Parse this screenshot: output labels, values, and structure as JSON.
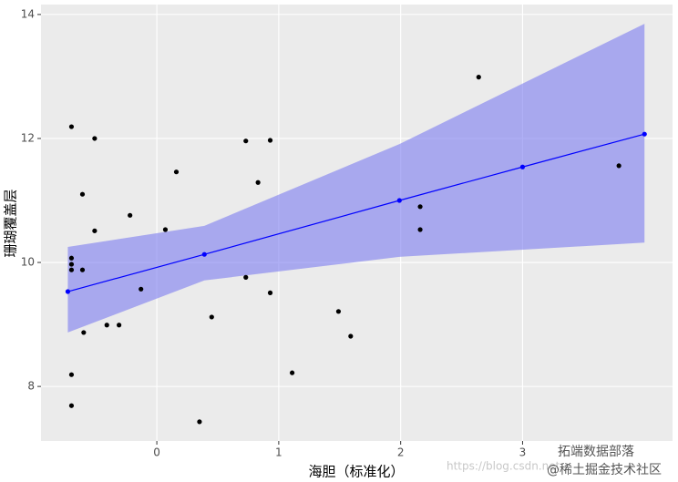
{
  "chart_data": {
    "type": "scatter",
    "x_label": "海胆（标准化）",
    "y_label": "珊瑚覆盖层",
    "xlim": [
      -0.95,
      4.23
    ],
    "ylim": [
      7.12,
      14.16
    ],
    "xticks": [
      0,
      1,
      2,
      3
    ],
    "yticks": [
      8,
      10,
      12,
      14
    ],
    "grid": true,
    "series": [
      {
        "kind": "points",
        "color": "#000000",
        "x": [
          -0.7,
          -0.51,
          -0.61,
          -0.51,
          -0.22,
          0.16,
          0.07,
          -0.7,
          -0.7,
          -0.7,
          -0.61,
          -0.13,
          -0.41,
          -0.31,
          -0.6,
          -0.7,
          -0.7,
          0.35,
          0.45,
          0.73,
          0.93,
          0.83,
          0.73,
          0.93,
          1.11,
          1.49,
          1.59,
          2.16,
          2.16,
          2.64,
          3.79
        ],
        "values": [
          12.19,
          12.0,
          11.1,
          10.51,
          10.76,
          11.46,
          10.53,
          10.07,
          9.97,
          9.88,
          9.88,
          9.57,
          8.99,
          8.99,
          8.87,
          8.19,
          7.69,
          7.43,
          9.12,
          11.96,
          11.97,
          11.29,
          9.76,
          9.51,
          8.22,
          9.21,
          8.81,
          10.9,
          10.53,
          12.99,
          11.56
        ]
      },
      {
        "kind": "band",
        "color": "#7b7bf0",
        "x": [
          -0.73,
          0.39,
          1.99,
          4.0
        ],
        "lower": [
          8.87,
          9.71,
          10.09,
          10.32
        ],
        "upper": [
          10.25,
          10.59,
          11.91,
          13.85
        ]
      },
      {
        "kind": "line",
        "color": "#0000ff",
        "x": [
          -0.73,
          0.39,
          1.99,
          3.0,
          4.0
        ],
        "values": [
          9.53,
          10.13,
          11.0,
          11.54,
          12.07
        ]
      }
    ],
    "watermarks": [
      "https://blog.csdn.net",
      "拓端数据部落",
      "@稀土掘金技术社区"
    ]
  }
}
